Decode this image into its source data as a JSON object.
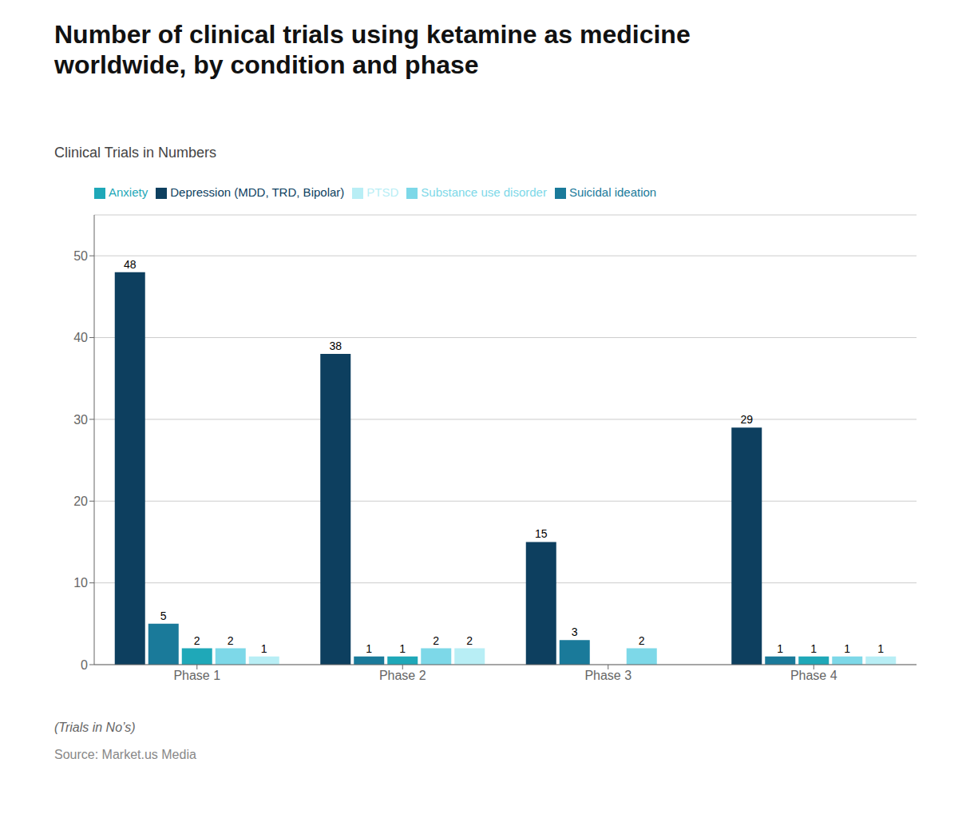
{
  "chart_data": {
    "type": "bar",
    "title": "Number of clinical trials using ketamine as medicine\nworldwide, by condition and phase",
    "subtitle": "Clinical Trials in Numbers",
    "annotations": [
      "(Trials in No’s)",
      "Source: Market.us Media"
    ],
    "categories": [
      "Phase 1",
      "Phase 2",
      "Phase 3",
      "Phase 4"
    ],
    "series": [
      {
        "name": "Depression (MDD, TRD, Bipolar)",
        "color": "#0d3f5f",
        "values": [
          48,
          38,
          15,
          29
        ]
      },
      {
        "name": "Suicidal ideation",
        "color": "#1a7a9a",
        "values": [
          5,
          1,
          3,
          1
        ]
      },
      {
        "name": "Anxiety",
        "color": "#1fa8b8",
        "values": [
          2,
          1,
          0,
          1
        ]
      },
      {
        "name": "Substance use disorder",
        "color": "#7dd8e8",
        "values": [
          2,
          2,
          2,
          1
        ]
      },
      {
        "name": "PTSD",
        "color": "#b8eef5",
        "values": [
          1,
          2,
          0,
          1
        ]
      }
    ],
    "ylim": [
      0,
      55
    ],
    "yticks": [
      0,
      10,
      20,
      30,
      40,
      50
    ],
    "grid": true,
    "legend": "upper left",
    "data_labels": true
  }
}
